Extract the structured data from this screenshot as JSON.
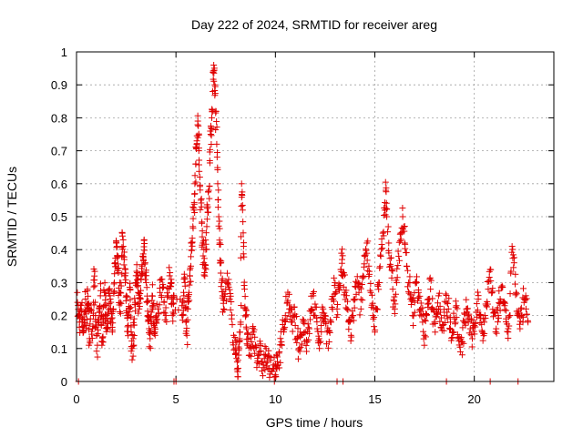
{
  "chart_data": {
    "type": "scatter",
    "title": "Day 222 of 2024, SRMTID for receiver areg",
    "xlabel": "GPS time / hours",
    "ylabel": "SRMTID / TECUs",
    "xlim": [
      0,
      24
    ],
    "ylim": [
      0,
      1
    ],
    "x_ticks": [
      0,
      5,
      10,
      15,
      20
    ],
    "y_ticks": [
      0,
      0.1,
      0.2,
      0.3,
      0.4,
      0.5,
      0.6,
      0.7,
      0.8,
      0.9,
      1
    ],
    "x_tick_labels": [
      "0",
      "5",
      "10",
      "15",
      "20"
    ],
    "y_tick_labels": [
      "0",
      "0.1",
      "0.2",
      "0.3",
      "0.4",
      "0.5",
      "0.6",
      "0.7",
      "0.8",
      "0.9",
      "1"
    ],
    "grid": true,
    "marker": "plus",
    "color": "#e00000",
    "series": [
      {
        "name": "SRMTID",
        "points": [
          [
            0.05,
            0.24
          ],
          [
            0.1,
            0.2
          ],
          [
            0.15,
            0.18
          ],
          [
            0.2,
            0.22
          ],
          [
            0.3,
            0.19
          ],
          [
            0.35,
            0.15
          ],
          [
            0.4,
            0.21
          ],
          [
            0.45,
            0.25
          ],
          [
            0.5,
            0.17
          ],
          [
            0.55,
            0.28
          ],
          [
            0.6,
            0.22
          ],
          [
            0.65,
            0.13
          ],
          [
            0.7,
            0.19
          ],
          [
            0.8,
            0.16
          ],
          [
            0.85,
            0.24
          ],
          [
            0.9,
            0.32
          ],
          [
            0.95,
            0.2
          ],
          [
            1.0,
            0.14
          ],
          [
            1.05,
            0.11
          ],
          [
            1.1,
            0.18
          ],
          [
            1.15,
            0.22
          ],
          [
            1.2,
            0.26
          ],
          [
            1.25,
            0.17
          ],
          [
            1.3,
            0.12
          ],
          [
            1.35,
            0.19
          ],
          [
            1.4,
            0.27
          ],
          [
            1.45,
            0.23
          ],
          [
            1.5,
            0.2
          ],
          [
            1.55,
            0.16
          ],
          [
            1.6,
            0.21
          ],
          [
            1.65,
            0.28
          ],
          [
            1.7,
            0.25
          ],
          [
            1.75,
            0.19
          ],
          [
            1.8,
            0.15
          ],
          [
            1.85,
            0.22
          ],
          [
            1.9,
            0.3
          ],
          [
            1.95,
            0.36
          ],
          [
            2.0,
            0.42
          ],
          [
            2.05,
            0.38
          ],
          [
            2.1,
            0.33
          ],
          [
            2.15,
            0.27
          ],
          [
            2.2,
            0.24
          ],
          [
            2.25,
            0.29
          ],
          [
            2.3,
            0.45
          ],
          [
            2.35,
            0.41
          ],
          [
            2.4,
            0.37
          ],
          [
            2.45,
            0.3
          ],
          [
            2.5,
            0.26
          ],
          [
            2.55,
            0.2
          ],
          [
            2.6,
            0.17
          ],
          [
            2.65,
            0.22
          ],
          [
            2.7,
            0.28
          ],
          [
            2.75,
            0.15
          ],
          [
            2.8,
            0.1
          ],
          [
            2.85,
            0.13
          ],
          [
            2.9,
            0.19
          ],
          [
            2.95,
            0.24
          ],
          [
            3.0,
            0.3
          ],
          [
            3.05,
            0.33
          ],
          [
            3.1,
            0.27
          ],
          [
            3.15,
            0.22
          ],
          [
            3.2,
            0.25
          ],
          [
            3.25,
            0.31
          ],
          [
            3.3,
            0.35
          ],
          [
            3.35,
            0.38
          ],
          [
            3.4,
            0.43
          ],
          [
            3.45,
            0.36
          ],
          [
            3.5,
            0.3
          ],
          [
            3.55,
            0.24
          ],
          [
            3.6,
            0.2
          ],
          [
            3.65,
            0.16
          ],
          [
            3.7,
            0.13
          ],
          [
            3.75,
            0.19
          ],
          [
            3.8,
            0.26
          ],
          [
            3.85,
            0.23
          ],
          [
            3.9,
            0.17
          ],
          [
            3.95,
            0.14
          ],
          [
            4.0,
            0.18
          ],
          [
            4.1,
            0.22
          ],
          [
            4.2,
            0.27
          ],
          [
            4.3,
            0.31
          ],
          [
            4.4,
            0.24
          ],
          [
            4.5,
            0.2
          ],
          [
            4.6,
            0.26
          ],
          [
            4.7,
            0.33
          ],
          [
            4.75,
            0.3
          ],
          [
            4.8,
            0.25
          ],
          [
            4.85,
            0.21
          ],
          [
            4.9,
            0.26
          ],
          [
            5.3,
            0.23
          ],
          [
            5.35,
            0.2
          ],
          [
            5.4,
            0.26
          ],
          [
            5.45,
            0.3
          ],
          [
            5.5,
            0.18
          ],
          [
            5.55,
            0.14
          ],
          [
            5.6,
            0.22
          ],
          [
            5.65,
            0.27
          ],
          [
            5.7,
            0.32
          ],
          [
            5.75,
            0.35
          ],
          [
            5.8,
            0.42
          ],
          [
            5.85,
            0.47
          ],
          [
            5.9,
            0.52
          ],
          [
            5.95,
            0.6
          ],
          [
            6.0,
            0.66
          ],
          [
            6.05,
            0.73
          ],
          [
            6.1,
            0.79
          ],
          [
            6.15,
            0.7
          ],
          [
            6.2,
            0.62
          ],
          [
            6.25,
            0.55
          ],
          [
            6.3,
            0.48
          ],
          [
            6.35,
            0.42
          ],
          [
            6.4,
            0.36
          ],
          [
            6.45,
            0.32
          ],
          [
            6.5,
            0.4
          ],
          [
            6.55,
            0.47
          ],
          [
            6.6,
            0.53
          ],
          [
            6.65,
            0.58
          ],
          [
            6.7,
            0.67
          ],
          [
            6.75,
            0.75
          ],
          [
            6.8,
            0.8
          ],
          [
            6.85,
            0.88
          ],
          [
            6.9,
            0.96
          ],
          [
            6.95,
            0.9
          ],
          [
            7.0,
            0.82
          ],
          [
            7.05,
            0.72
          ],
          [
            7.1,
            0.6
          ],
          [
            7.15,
            0.5
          ],
          [
            7.2,
            0.42
          ],
          [
            7.25,
            0.36
          ],
          [
            7.3,
            0.3
          ],
          [
            7.35,
            0.26
          ],
          [
            7.4,
            0.22
          ],
          [
            7.5,
            0.28
          ],
          [
            7.6,
            0.3
          ],
          [
            7.7,
            0.25
          ],
          [
            7.8,
            0.19
          ],
          [
            7.9,
            0.14
          ],
          [
            8.0,
            0.1
          ],
          [
            8.05,
            0.07
          ],
          [
            8.1,
            0.04
          ],
          [
            8.15,
            0.08
          ],
          [
            8.2,
            0.13
          ],
          [
            8.25,
            0.18
          ],
          [
            8.3,
            0.6
          ],
          [
            8.35,
            0.52
          ],
          [
            8.4,
            0.41
          ],
          [
            8.45,
            0.28
          ],
          [
            8.5,
            0.2
          ],
          [
            8.55,
            0.16
          ],
          [
            8.6,
            0.11
          ],
          [
            8.7,
            0.08
          ],
          [
            8.8,
            0.12
          ],
          [
            8.9,
            0.15
          ],
          [
            9.0,
            0.11
          ],
          [
            9.1,
            0.07
          ],
          [
            9.2,
            0.09
          ],
          [
            9.3,
            0.06
          ],
          [
            9.4,
            0.05
          ],
          [
            9.5,
            0.08
          ],
          [
            9.6,
            0.06
          ],
          [
            9.7,
            0.04
          ],
          [
            9.8,
            0.03
          ],
          [
            9.9,
            0.05
          ],
          [
            10.0,
            0.02
          ],
          [
            10.05,
            0.04
          ],
          [
            10.1,
            0.06
          ],
          [
            10.2,
            0.09
          ],
          [
            10.3,
            0.12
          ],
          [
            10.4,
            0.16
          ],
          [
            10.5,
            0.2
          ],
          [
            10.6,
            0.24
          ],
          [
            10.7,
            0.22
          ],
          [
            10.8,
            0.18
          ],
          [
            10.9,
            0.2
          ],
          [
            11.0,
            0.17
          ],
          [
            11.1,
            0.13
          ],
          [
            11.2,
            0.1
          ],
          [
            11.3,
            0.14
          ],
          [
            11.4,
            0.18
          ],
          [
            11.5,
            0.15
          ],
          [
            11.6,
            0.12
          ],
          [
            11.7,
            0.16
          ],
          [
            11.8,
            0.22
          ],
          [
            11.9,
            0.26
          ],
          [
            12.0,
            0.2
          ],
          [
            12.1,
            0.16
          ],
          [
            12.2,
            0.13
          ],
          [
            12.3,
            0.17
          ],
          [
            12.4,
            0.22
          ],
          [
            12.5,
            0.19
          ],
          [
            12.6,
            0.15
          ],
          [
            12.7,
            0.12
          ],
          [
            12.8,
            0.18
          ],
          [
            12.9,
            0.25
          ],
          [
            13.0,
            0.3
          ],
          [
            13.1,
            0.22
          ],
          [
            13.2,
            0.28
          ],
          [
            13.3,
            0.34
          ],
          [
            13.35,
            0.37
          ],
          [
            13.4,
            0.32
          ],
          [
            13.5,
            0.27
          ],
          [
            13.6,
            0.22
          ],
          [
            13.7,
            0.18
          ],
          [
            13.8,
            0.14
          ],
          [
            13.9,
            0.2
          ],
          [
            14.0,
            0.25
          ],
          [
            14.1,
            0.3
          ],
          [
            14.2,
            0.27
          ],
          [
            14.3,
            0.22
          ],
          [
            14.4,
            0.32
          ],
          [
            14.5,
            0.38
          ],
          [
            14.6,
            0.42
          ],
          [
            14.7,
            0.35
          ],
          [
            14.8,
            0.27
          ],
          [
            14.9,
            0.2
          ],
          [
            15.0,
            0.15
          ],
          [
            15.1,
            0.22
          ],
          [
            15.2,
            0.3
          ],
          [
            15.3,
            0.38
          ],
          [
            15.4,
            0.45
          ],
          [
            15.5,
            0.52
          ],
          [
            15.55,
            0.58
          ],
          [
            15.6,
            0.5
          ],
          [
            15.7,
            0.42
          ],
          [
            15.8,
            0.35
          ],
          [
            15.9,
            0.28
          ],
          [
            16.0,
            0.22
          ],
          [
            16.1,
            0.3
          ],
          [
            16.2,
            0.38
          ],
          [
            16.3,
            0.45
          ],
          [
            16.4,
            0.5
          ],
          [
            16.5,
            0.42
          ],
          [
            16.6,
            0.35
          ],
          [
            16.7,
            0.3
          ],
          [
            16.8,
            0.25
          ],
          [
            16.9,
            0.2
          ],
          [
            17.0,
            0.24
          ],
          [
            17.1,
            0.3
          ],
          [
            17.2,
            0.27
          ],
          [
            17.3,
            0.22
          ],
          [
            17.4,
            0.18
          ],
          [
            17.5,
            0.14
          ],
          [
            17.6,
            0.2
          ],
          [
            17.7,
            0.25
          ],
          [
            17.8,
            0.28
          ],
          [
            17.9,
            0.22
          ],
          [
            18.0,
            0.18
          ],
          [
            18.1,
            0.22
          ],
          [
            18.2,
            0.26
          ],
          [
            18.3,
            0.21
          ],
          [
            18.4,
            0.17
          ],
          [
            18.5,
            0.2
          ],
          [
            18.6,
            0.24
          ],
          [
            18.7,
            0.22
          ],
          [
            18.8,
            0.18
          ],
          [
            18.9,
            0.15
          ],
          [
            19.0,
            0.19
          ],
          [
            19.1,
            0.23
          ],
          [
            19.2,
            0.13
          ],
          [
            19.3,
            0.09
          ],
          [
            19.4,
            0.12
          ],
          [
            19.5,
            0.18
          ],
          [
            19.6,
            0.22
          ],
          [
            19.7,
            0.2
          ],
          [
            19.8,
            0.16
          ],
          [
            19.9,
            0.13
          ],
          [
            20.0,
            0.17
          ],
          [
            20.1,
            0.21
          ],
          [
            20.2,
            0.25
          ],
          [
            20.3,
            0.2
          ],
          [
            20.4,
            0.15
          ],
          [
            20.5,
            0.18
          ],
          [
            20.6,
            0.23
          ],
          [
            20.7,
            0.28
          ],
          [
            20.8,
            0.34
          ],
          [
            20.9,
            0.27
          ],
          [
            21.0,
            0.21
          ],
          [
            21.1,
            0.16
          ],
          [
            21.2,
            0.2
          ],
          [
            21.3,
            0.25
          ],
          [
            21.4,
            0.29
          ],
          [
            21.5,
            0.24
          ],
          [
            21.6,
            0.19
          ],
          [
            21.7,
            0.15
          ],
          [
            21.8,
            0.2
          ],
          [
            21.9,
            0.41
          ],
          [
            22.0,
            0.36
          ],
          [
            22.1,
            0.27
          ],
          [
            22.2,
            0.2
          ],
          [
            22.3,
            0.16
          ],
          [
            22.4,
            0.2
          ],
          [
            22.5,
            0.25
          ],
          [
            22.6,
            0.22
          ],
          [
            22.7,
            0.18
          ]
        ]
      }
    ],
    "zero_points_x": [
      0.1,
      4.9,
      5.0,
      9.95,
      13.1,
      13.4,
      18.6,
      20.8,
      22.2
    ]
  }
}
